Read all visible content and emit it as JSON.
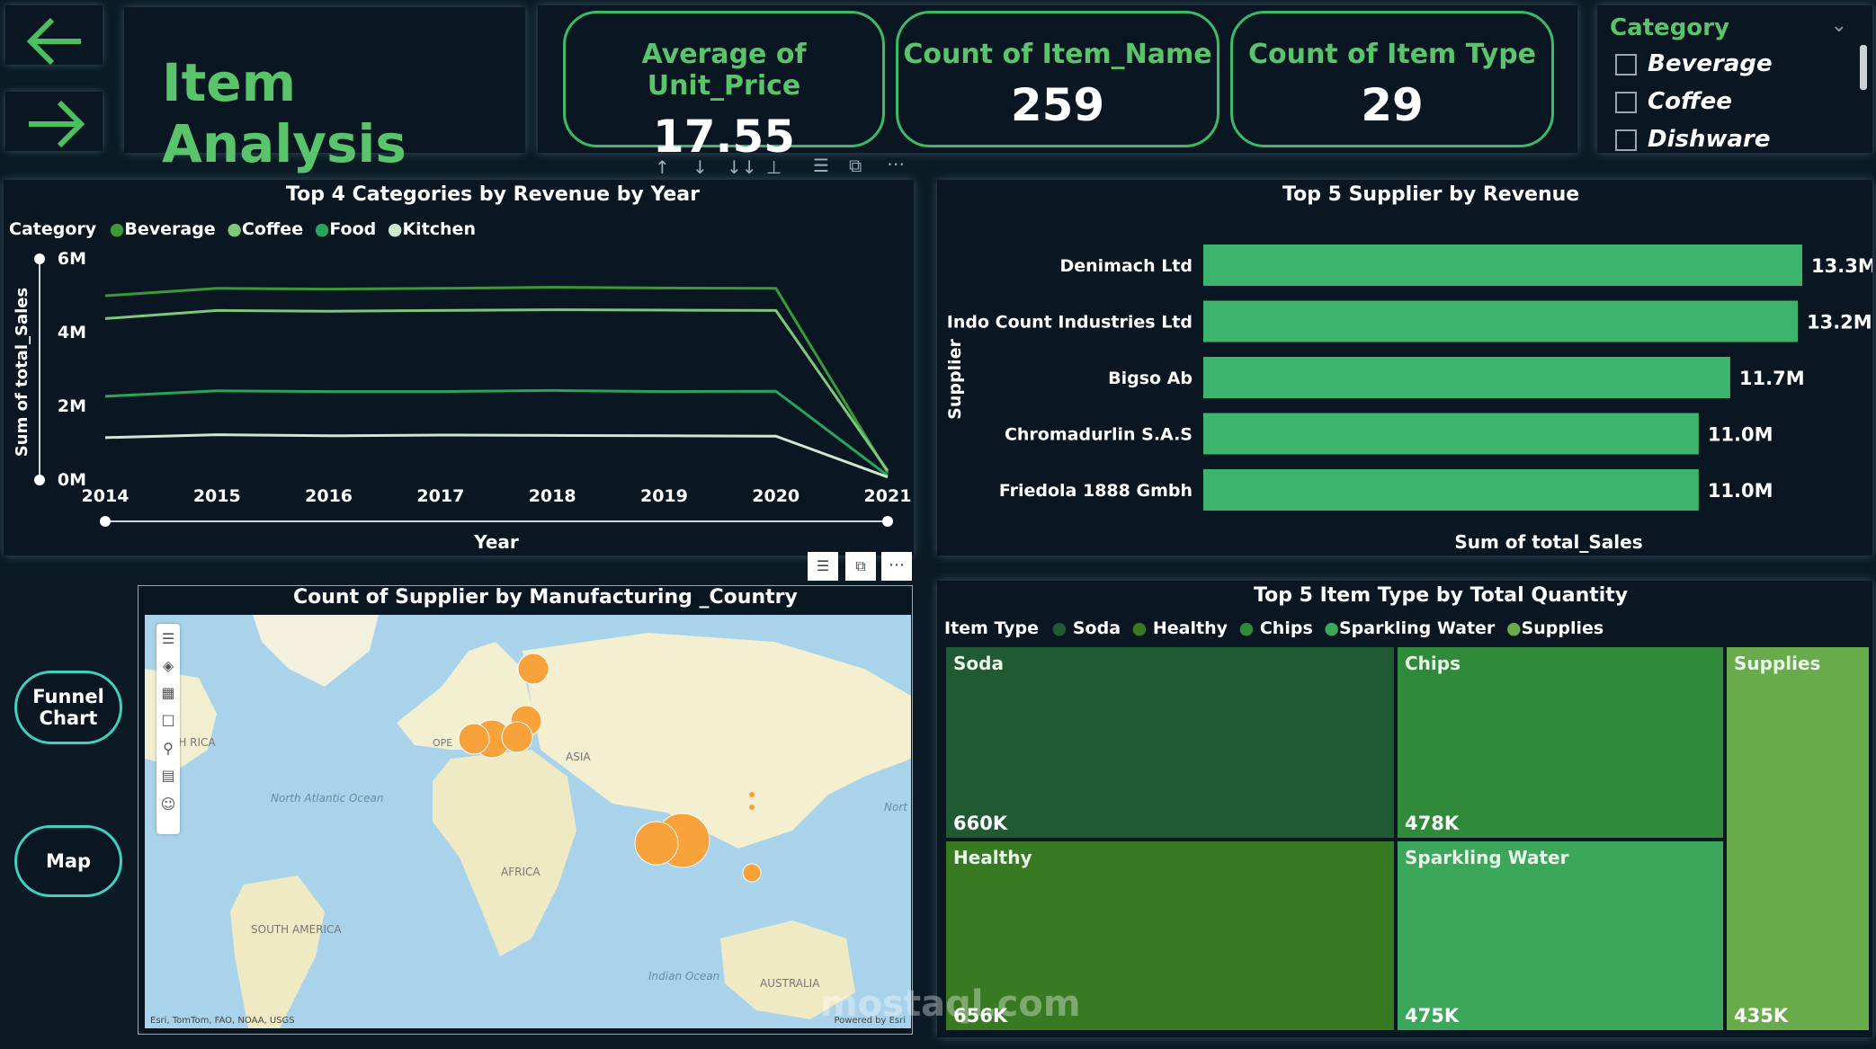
{
  "header": {
    "title": "Item Analysis",
    "kpis": [
      {
        "label": "Average of Unit_Price",
        "value": "17.55"
      },
      {
        "label": "Count of Item_Name",
        "value": "259"
      },
      {
        "label": "Count of Item Type",
        "value": "29"
      }
    ]
  },
  "slicer": {
    "title": "Category",
    "items": [
      "Beverage",
      "Coffee",
      "Dishware"
    ]
  },
  "side_buttons": {
    "funnel_line1": "Funnel",
    "funnel_line2": "Chart",
    "map": "Map"
  },
  "line_chart_legend_title": "Category",
  "bar_chart_axis_title": "Supplier",
  "map_chart": {
    "title": "Count of Supplier by Manufacturing _Country",
    "labels": {
      "europe": "OPE",
      "asia": "ASIA",
      "africa": "AFRICA",
      "south_america": "SOUTH AMERICA",
      "north_america": "TH RICA",
      "north_atlantic": "North Atlantic Ocean",
      "indian": "Indian Ocean",
      "australia": "AUSTRALIA",
      "north_pacific": "Nort"
    },
    "attribution": "Esri, TomTom, FAO, NOAA, USGS",
    "powered": "Powered by Esri"
  },
  "treemap_legend_title": "Item Type",
  "watermark": "mostaql.com",
  "colors": {
    "accent": "#59c46c",
    "kpi_border": "#3cba6a",
    "bar": "#3cb46e",
    "bubble": "#f7a23a",
    "button_border": "#40d0c0"
  },
  "chart_data": [
    {
      "type": "line",
      "title": "Top 4 Categories by Revenue by Year",
      "xlabel": "Year",
      "ylabel": "Sum of total_Sales",
      "x": [
        2014,
        2015,
        2016,
        2017,
        2018,
        2019,
        2020,
        2021
      ],
      "ylim": [
        0,
        6000000
      ],
      "yticks": [
        "0M",
        "2M",
        "4M",
        "6M"
      ],
      "legend_position": "top-left",
      "series": [
        {
          "name": "Beverage",
          "color": "#3a9a3a",
          "values": [
            5000000,
            5200000,
            5180000,
            5200000,
            5230000,
            5210000,
            5200000,
            200000
          ]
        },
        {
          "name": "Coffee",
          "color": "#7dc87a",
          "values": [
            4380000,
            4600000,
            4580000,
            4600000,
            4620000,
            4610000,
            4600000,
            250000
          ]
        },
        {
          "name": "Food",
          "color": "#27a55a",
          "values": [
            2270000,
            2420000,
            2400000,
            2400000,
            2430000,
            2400000,
            2410000,
            120000
          ]
        },
        {
          "name": "Kitchen",
          "color": "#cfe8d4",
          "values": [
            1150000,
            1230000,
            1200000,
            1220000,
            1210000,
            1200000,
            1190000,
            80000
          ]
        }
      ]
    },
    {
      "type": "bar",
      "title": "Top 5 Supplier by Revenue",
      "xlabel": "Sum of total_Sales",
      "ylabel": "Supplier",
      "categories": [
        "Denimach Ltd",
        "Indo Count Industries Ltd",
        "Bigso Ab",
        "Chromadurlin S.A.S",
        "Friedola 1888 Gmbh"
      ],
      "values": [
        13.3,
        13.2,
        11.7,
        11.0,
        11.0
      ],
      "labels": [
        "13.3M",
        "13.2M",
        "11.7M",
        "11.0M",
        "11.0M"
      ],
      "xlim": [
        0,
        13.3
      ]
    },
    {
      "type": "treemap",
      "title": "Top 5 Item Type by Total Quantity",
      "legend_position": "top-left",
      "categories": [
        "Soda",
        "Healthy",
        "Chips",
        "Sparkling Water",
        "Supplies"
      ],
      "values": [
        660,
        656,
        478,
        475,
        435
      ],
      "labels": [
        "660K",
        "656K",
        "478K",
        "475K",
        "435K"
      ],
      "colors": [
        "#1f5a32",
        "#387a22",
        "#2f8a3a",
        "#3ba75a",
        "#68ab4a"
      ]
    }
  ]
}
